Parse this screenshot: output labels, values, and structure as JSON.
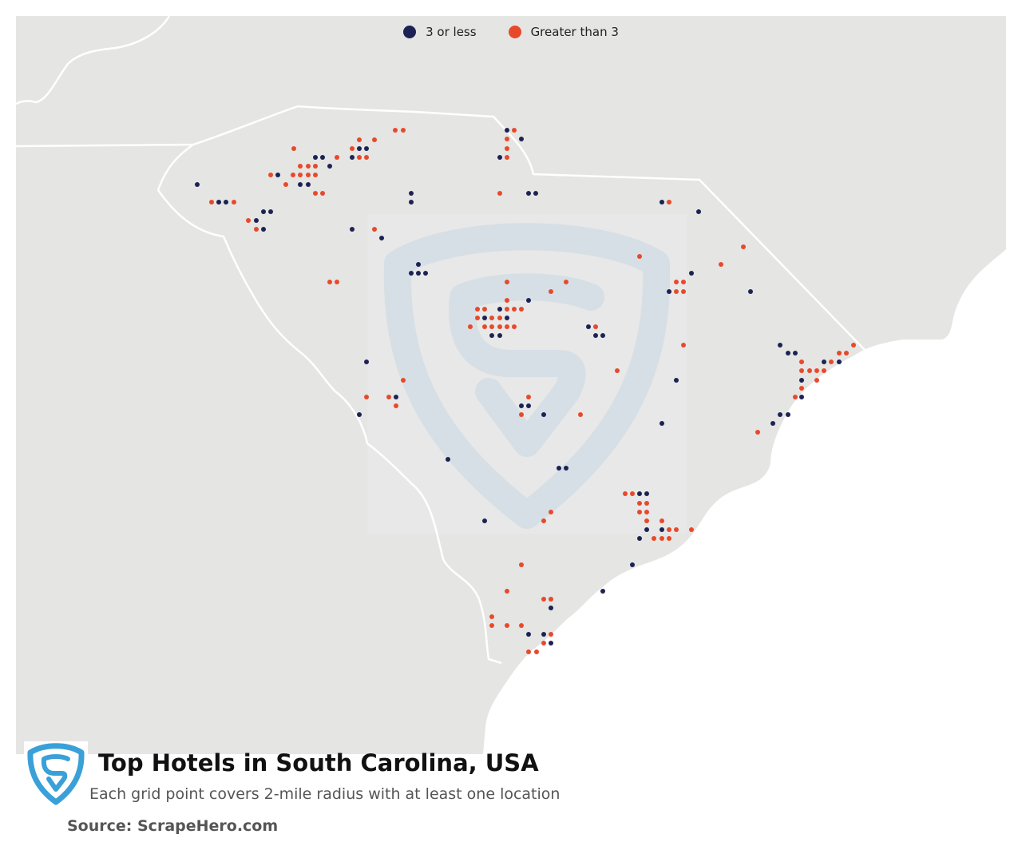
{
  "legend": {
    "low_label": "3 or less",
    "high_label": "Greater than 3",
    "low_color": "#1c2354",
    "high_color": "#e8492b"
  },
  "title": "Top Hotels in South Carolina, USA",
  "subtitle": "Each grid point covers 2-mile radius with at least one location",
  "source": "Source: ScrapeHero.com",
  "icons": {
    "logo": "scrapehero-shield-logo",
    "watermark": "scrapehero-shield-watermark"
  },
  "colors": {
    "land": "#e5e5e3",
    "ocean": "#ffffff",
    "border": "#ffffff",
    "logo_blue": "#3aa0d8",
    "watermark": "#d6dfe6"
  }
}
